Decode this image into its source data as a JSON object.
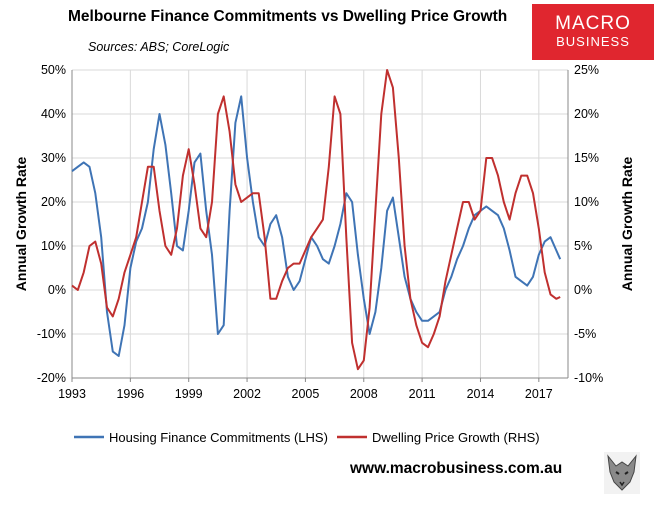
{
  "header": {
    "title": "Melbourne Finance Commitments vs Dwelling Price Growth",
    "subtitle": "Sources: ABS; CoreLogic"
  },
  "logo": {
    "line1": "MACRO",
    "line2": "BUSINESS"
  },
  "footer": {
    "website": "www.macrobusiness.com.au"
  },
  "colors": {
    "series_lhs": "#3f74b5",
    "series_rhs": "#c0302f",
    "logo_bg": "#e0262f"
  },
  "chart_data": {
    "type": "line",
    "title": "Melbourne Finance Commitments vs Dwelling Price Growth",
    "ylabel": "Annual Growth Rate",
    "y2label": "Annual Growth Rate",
    "xlim": [
      1993,
      2018.5
    ],
    "ylim": [
      -20,
      50
    ],
    "y2lim": [
      -10,
      25
    ],
    "x_ticks": [
      1993,
      1996,
      1999,
      2002,
      2005,
      2008,
      2011,
      2014,
      2017
    ],
    "y_ticks": [
      "-20%",
      "-10%",
      "0%",
      "10%",
      "20%",
      "30%",
      "40%",
      "50%"
    ],
    "y2_ticks": [
      "-10%",
      "-5%",
      "0%",
      "5%",
      "10%",
      "15%",
      "20%",
      "25%"
    ],
    "legend_position": "bottom",
    "grid": true,
    "series": [
      {
        "name": "Housing Finance Commitments (LHS)",
        "axis": "left",
        "x": [
          1993.0,
          1993.3,
          1993.6,
          1993.9,
          1994.2,
          1994.5,
          1994.8,
          1995.1,
          1995.4,
          1995.7,
          1996.0,
          1996.3,
          1996.6,
          1996.9,
          1997.2,
          1997.5,
          1997.8,
          1998.1,
          1998.4,
          1998.7,
          1999.0,
          1999.3,
          1999.6,
          1999.9,
          2000.2,
          2000.5,
          2000.8,
          2001.1,
          2001.4,
          2001.7,
          2002.0,
          2002.3,
          2002.6,
          2002.9,
          2003.2,
          2003.5,
          2003.8,
          2004.1,
          2004.4,
          2004.7,
          2005.0,
          2005.3,
          2005.6,
          2005.9,
          2006.2,
          2006.5,
          2006.8,
          2007.1,
          2007.4,
          2007.7,
          2008.0,
          2008.3,
          2008.6,
          2008.9,
          2009.2,
          2009.5,
          2009.8,
          2010.1,
          2010.4,
          2010.7,
          2011.0,
          2011.3,
          2011.6,
          2011.9,
          2012.2,
          2012.5,
          2012.8,
          2013.1,
          2013.4,
          2013.7,
          2014.0,
          2014.3,
          2014.6,
          2014.9,
          2015.2,
          2015.5,
          2015.8,
          2016.1,
          2016.4,
          2016.7,
          2017.0,
          2017.3,
          2017.6,
          2017.9,
          2018.1
        ],
        "y": [
          27,
          28,
          29,
          28,
          22,
          12,
          -5,
          -14,
          -15,
          -8,
          5,
          11,
          14,
          20,
          32,
          40,
          33,
          22,
          10,
          9,
          18,
          29,
          31,
          18,
          8,
          -10,
          -8,
          18,
          38,
          44,
          30,
          20,
          12,
          10,
          15,
          17,
          12,
          3,
          0,
          2,
          7,
          12,
          10,
          7,
          6,
          10,
          15,
          22,
          20,
          8,
          -2,
          -10,
          -5,
          5,
          18,
          21,
          12,
          3,
          -2,
          -5,
          -7,
          -7,
          -6,
          -5,
          0,
          3,
          7,
          10,
          14,
          17,
          18,
          19,
          18,
          17,
          14,
          9,
          3,
          2,
          1,
          3,
          8,
          11,
          12,
          9,
          7
        ]
      },
      {
        "name": "Dwelling Price Growth (RHS)",
        "axis": "right",
        "x": [
          1993.0,
          1993.3,
          1993.6,
          1993.9,
          1994.2,
          1994.5,
          1994.8,
          1995.1,
          1995.4,
          1995.7,
          1996.0,
          1996.3,
          1996.6,
          1996.9,
          1997.2,
          1997.5,
          1997.8,
          1998.1,
          1998.4,
          1998.7,
          1999.0,
          1999.3,
          1999.6,
          1999.9,
          2000.2,
          2000.5,
          2000.8,
          2001.1,
          2001.4,
          2001.7,
          2002.0,
          2002.3,
          2002.6,
          2002.9,
          2003.2,
          2003.5,
          2003.8,
          2004.1,
          2004.4,
          2004.7,
          2005.0,
          2005.3,
          2005.6,
          2005.9,
          2006.2,
          2006.5,
          2006.8,
          2007.1,
          2007.4,
          2007.7,
          2008.0,
          2008.3,
          2008.6,
          2008.9,
          2009.2,
          2009.5,
          2009.8,
          2010.1,
          2010.4,
          2010.7,
          2011.0,
          2011.3,
          2011.6,
          2011.9,
          2012.2,
          2012.5,
          2012.8,
          2013.1,
          2013.4,
          2013.7,
          2014.0,
          2014.3,
          2014.6,
          2014.9,
          2015.2,
          2015.5,
          2015.8,
          2016.1,
          2016.4,
          2016.7,
          2017.0,
          2017.3,
          2017.6,
          2017.9,
          2018.1
        ],
        "y": [
          0.5,
          0,
          2,
          5,
          5.5,
          3,
          -2,
          -3,
          -1,
          2,
          4,
          6,
          10,
          14,
          14,
          9,
          5,
          4,
          7,
          13,
          16,
          12,
          7,
          6,
          10,
          20,
          22,
          18,
          12,
          10,
          10.5,
          11,
          11,
          6,
          -1,
          -1,
          1,
          2.5,
          3,
          3,
          4.5,
          6,
          7,
          8,
          14,
          22,
          20,
          6,
          -6,
          -9,
          -8,
          -2,
          9,
          20,
          25,
          23,
          15,
          5,
          -1,
          -4,
          -6,
          -6.5,
          -5,
          -3,
          1,
          4,
          7,
          10,
          10,
          8,
          9,
          15,
          15,
          13,
          10,
          8,
          11,
          13,
          13,
          11,
          7,
          2,
          -0.5,
          -1,
          -0.8
        ]
      }
    ]
  }
}
